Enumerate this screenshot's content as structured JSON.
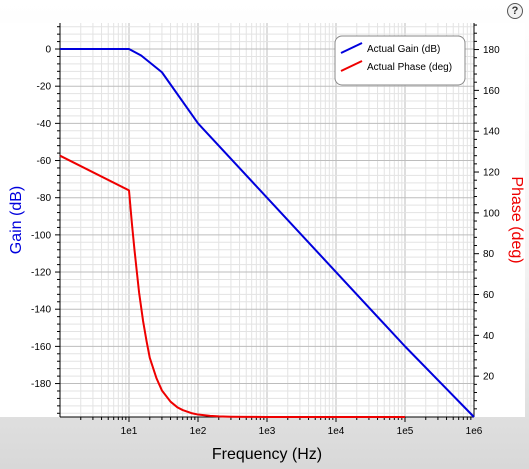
{
  "help_icon": {
    "name": "help-icon",
    "glyph": "?"
  },
  "chart_data": {
    "type": "line",
    "title": "",
    "xlabel": "Frequency (Hz)",
    "ylabel_left": "Gain (dB)",
    "ylabel_right": "Phase (deg)",
    "xscale": "log",
    "xlim": [
      1,
      1000000
    ],
    "ylim_left": [
      -198,
      14
    ],
    "ylim_right": [
      0,
      193
    ],
    "x_ticks": [
      {
        "value": 10,
        "label": "1e1"
      },
      {
        "value": 100,
        "label": "1e2"
      },
      {
        "value": 1000,
        "label": "1e3"
      },
      {
        "value": 10000,
        "label": "1e4"
      },
      {
        "value": 100000,
        "label": "1e5"
      },
      {
        "value": 1000000,
        "label": "1e6"
      }
    ],
    "y_ticks_left": [
      0,
      -20,
      -40,
      -60,
      -80,
      -100,
      -120,
      -140,
      -160,
      -180
    ],
    "y_ticks_right": [
      20,
      40,
      60,
      80,
      100,
      120,
      140,
      160,
      180
    ],
    "grid": true,
    "legend_position": "top-right",
    "series": [
      {
        "name": "Actual Gain (dB)",
        "axis": "left",
        "color": "#0000dd",
        "x": [
          1,
          10,
          15,
          30,
          100,
          1000,
          10000,
          100000,
          1000000
        ],
        "y": [
          0,
          0,
          -3.5,
          -12.5,
          -40,
          -80,
          -120,
          -160,
          -200
        ]
      },
      {
        "name": "Actual Phase (deg)",
        "axis": "right",
        "color": "#ee0000",
        "x": [
          1,
          10,
          11,
          12,
          13,
          14,
          16,
          18,
          20,
          25,
          30,
          40,
          50,
          60,
          80,
          100,
          150,
          200,
          300,
          500,
          1000,
          2000,
          5000,
          10000,
          100000
        ],
        "y": [
          128,
          111,
          95,
          82,
          71,
          61,
          47,
          37,
          29,
          19,
          13,
          7.5,
          4.8,
          3.4,
          1.9,
          1.2,
          0.55,
          0.3,
          0.14,
          0.05,
          0.01,
          0,
          0,
          0,
          0
        ]
      }
    ]
  }
}
